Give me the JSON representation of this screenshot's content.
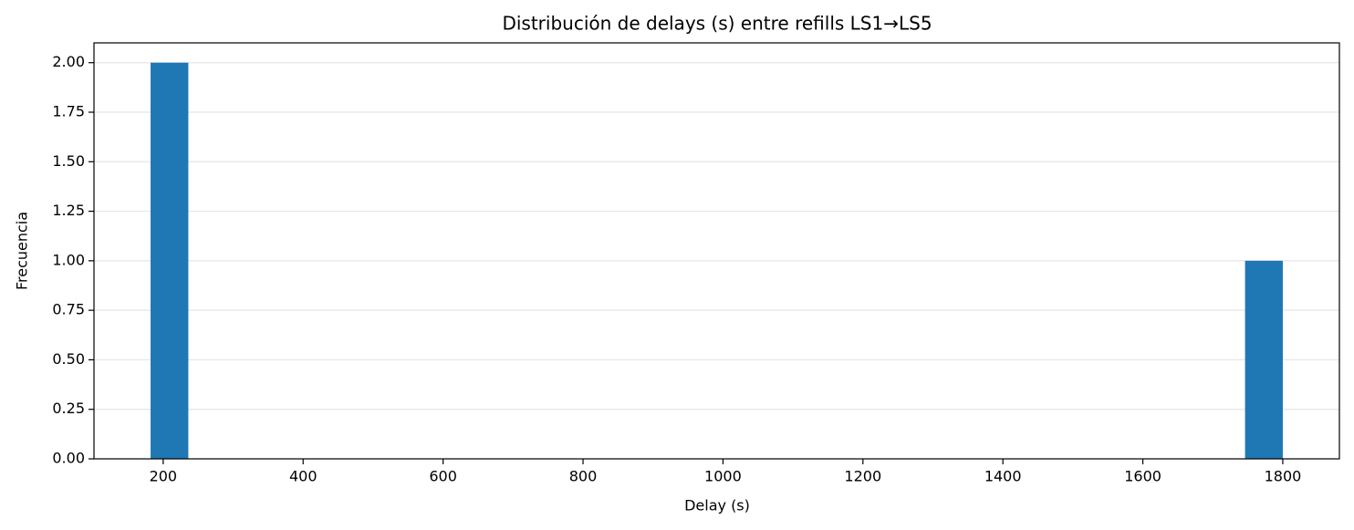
{
  "chart_data": {
    "type": "histogram",
    "title": "Distribución de delays (s) entre refills LS1→LS5",
    "x_label": "Delay (s)",
    "y_label": "Frecuencia",
    "bins": [
      182,
      235.93,
      289.87,
      343.8,
      397.73,
      451.67,
      505.6,
      559.53,
      613.47,
      667.4,
      721.33,
      775.27,
      829.2,
      883.13,
      937.07,
      991,
      1044.93,
      1098.87,
      1152.8,
      1206.73,
      1260.67,
      1314.6,
      1368.53,
      1422.47,
      1476.4,
      1530.33,
      1584.27,
      1638.2,
      1692.13,
      1746.07,
      1800
    ],
    "counts": [
      2,
      0,
      0,
      0,
      0,
      0,
      0,
      0,
      0,
      0,
      0,
      0,
      0,
      0,
      0,
      0,
      0,
      0,
      0,
      0,
      0,
      0,
      0,
      0,
      0,
      0,
      0,
      0,
      0,
      1
    ],
    "color": "#1f77b4",
    "xlim": [
      101.1,
      1880.9
    ],
    "xticks": [
      200,
      400,
      600,
      800,
      1000,
      1200,
      1400,
      1600,
      1800
    ],
    "ylim": [
      0,
      2.1
    ],
    "yticks": [
      {
        "value": 0,
        "label": "0.00"
      },
      {
        "value": 0.25,
        "label": "0.25"
      },
      {
        "value": 0.5,
        "label": "0.50"
      },
      {
        "value": 0.75,
        "label": "0.75"
      },
      {
        "value": 1,
        "label": "1.00"
      },
      {
        "value": 1.25,
        "label": "1.25"
      },
      {
        "value": 1.5,
        "label": "1.50"
      },
      {
        "value": 1.75,
        "label": "1.75"
      },
      {
        "value": 2,
        "label": "2.00"
      }
    ],
    "grid": true
  }
}
